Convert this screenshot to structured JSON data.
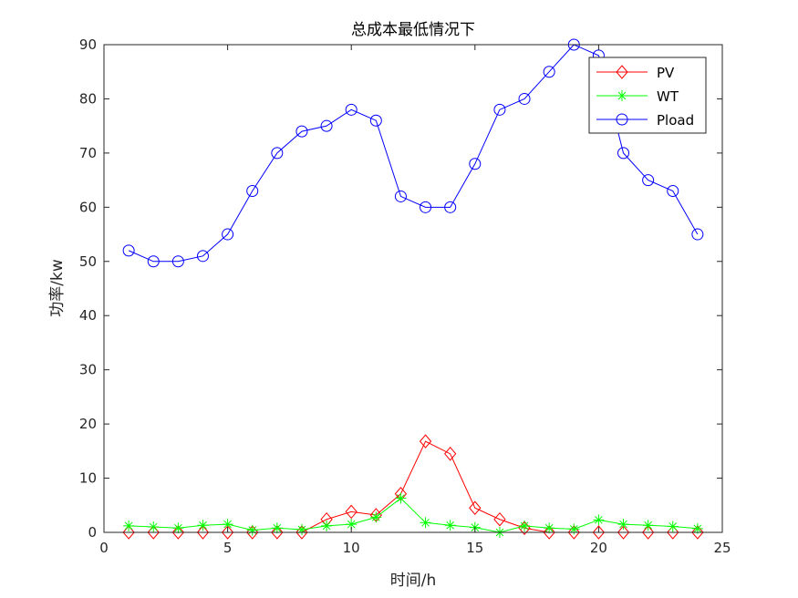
{
  "chart_data": {
    "type": "line",
    "title": "总成本最低情况下",
    "xlabel": "时间/h",
    "ylabel": "功率/kw",
    "xlim": [
      0,
      25
    ],
    "ylim": [
      0,
      90
    ],
    "xticks": [
      0,
      5,
      10,
      15,
      20,
      25
    ],
    "yticks": [
      0,
      10,
      20,
      30,
      40,
      50,
      60,
      70,
      80,
      90
    ],
    "grid": false,
    "legend_position": "top-right",
    "x": [
      1,
      2,
      3,
      4,
      5,
      6,
      7,
      8,
      9,
      10,
      11,
      12,
      13,
      14,
      15,
      16,
      17,
      18,
      19,
      20,
      21,
      22,
      23,
      24
    ],
    "series": [
      {
        "name": "PV",
        "color": "#ff0000",
        "marker": "diamond",
        "values": [
          0,
          0,
          0,
          0,
          0,
          0,
          0,
          0,
          2.4,
          3.8,
          3.2,
          7.1,
          16.8,
          14.5,
          4.5,
          2.4,
          0.8,
          0,
          0,
          0,
          0,
          0,
          0,
          0
        ]
      },
      {
        "name": "WT",
        "color": "#00ff00",
        "marker": "asterisk",
        "values": [
          1.2,
          1,
          0.8,
          1.3,
          1.5,
          0.4,
          0.8,
          0.5,
          1.2,
          1.5,
          2.8,
          6.3,
          1.8,
          1.3,
          0.9,
          0,
          1.2,
          0.8,
          0.6,
          2.3,
          1.5,
          1.3,
          1.1,
          0.7
        ]
      },
      {
        "name": "Pload",
        "color": "#0000ff",
        "marker": "circle",
        "values": [
          52,
          50,
          50,
          51,
          55,
          63,
          70,
          74,
          75,
          78,
          76,
          62,
          60,
          60,
          68,
          78,
          80,
          85,
          90,
          88,
          70,
          65,
          63,
          55
        ]
      }
    ]
  }
}
